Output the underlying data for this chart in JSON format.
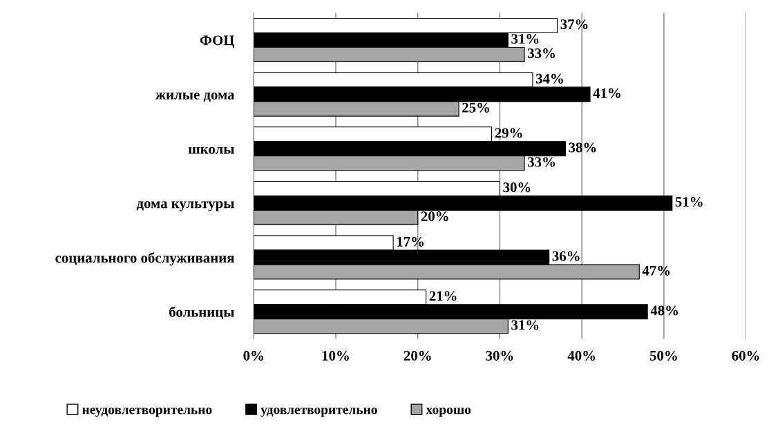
{
  "chart_data": {
    "type": "bar",
    "orientation": "horizontal",
    "categories": [
      "ФОЦ",
      "жилые дома",
      "школы",
      "дома культуры",
      "социального обслуживания",
      "больницы"
    ],
    "series": [
      {
        "name": "неудовлетворительно",
        "color": "#ffffff",
        "values": [
          37,
          34,
          29,
          30,
          17,
          21
        ],
        "value_labels": [
          "37%",
          "34%",
          "29%",
          "30%",
          "17%",
          "21%"
        ]
      },
      {
        "name": "удовлетворительно",
        "color": "#000000",
        "values": [
          31,
          41,
          38,
          51,
          36,
          48
        ],
        "value_labels": [
          "31%",
          "41%",
          "38%",
          "51%",
          "36%",
          "48%"
        ]
      },
      {
        "name": "хорошо",
        "color": "#a6a6a6",
        "values": [
          33,
          25,
          33,
          20,
          47,
          31
        ],
        "value_labels": [
          "33%",
          "25%",
          "33%",
          "20%",
          "47%",
          "31%"
        ]
      }
    ],
    "xlim": [
      0,
      60
    ],
    "xticks": [
      {
        "value": 0,
        "label": "0%"
      },
      {
        "value": 10,
        "label": "10%"
      },
      {
        "value": 20,
        "label": "20%"
      },
      {
        "value": 30,
        "label": "30%"
      },
      {
        "value": 40,
        "label": "40%"
      },
      {
        "value": 50,
        "label": "50%"
      },
      {
        "value": 60,
        "label": "60%"
      }
    ],
    "grid": "x",
    "legend": "bottom"
  }
}
